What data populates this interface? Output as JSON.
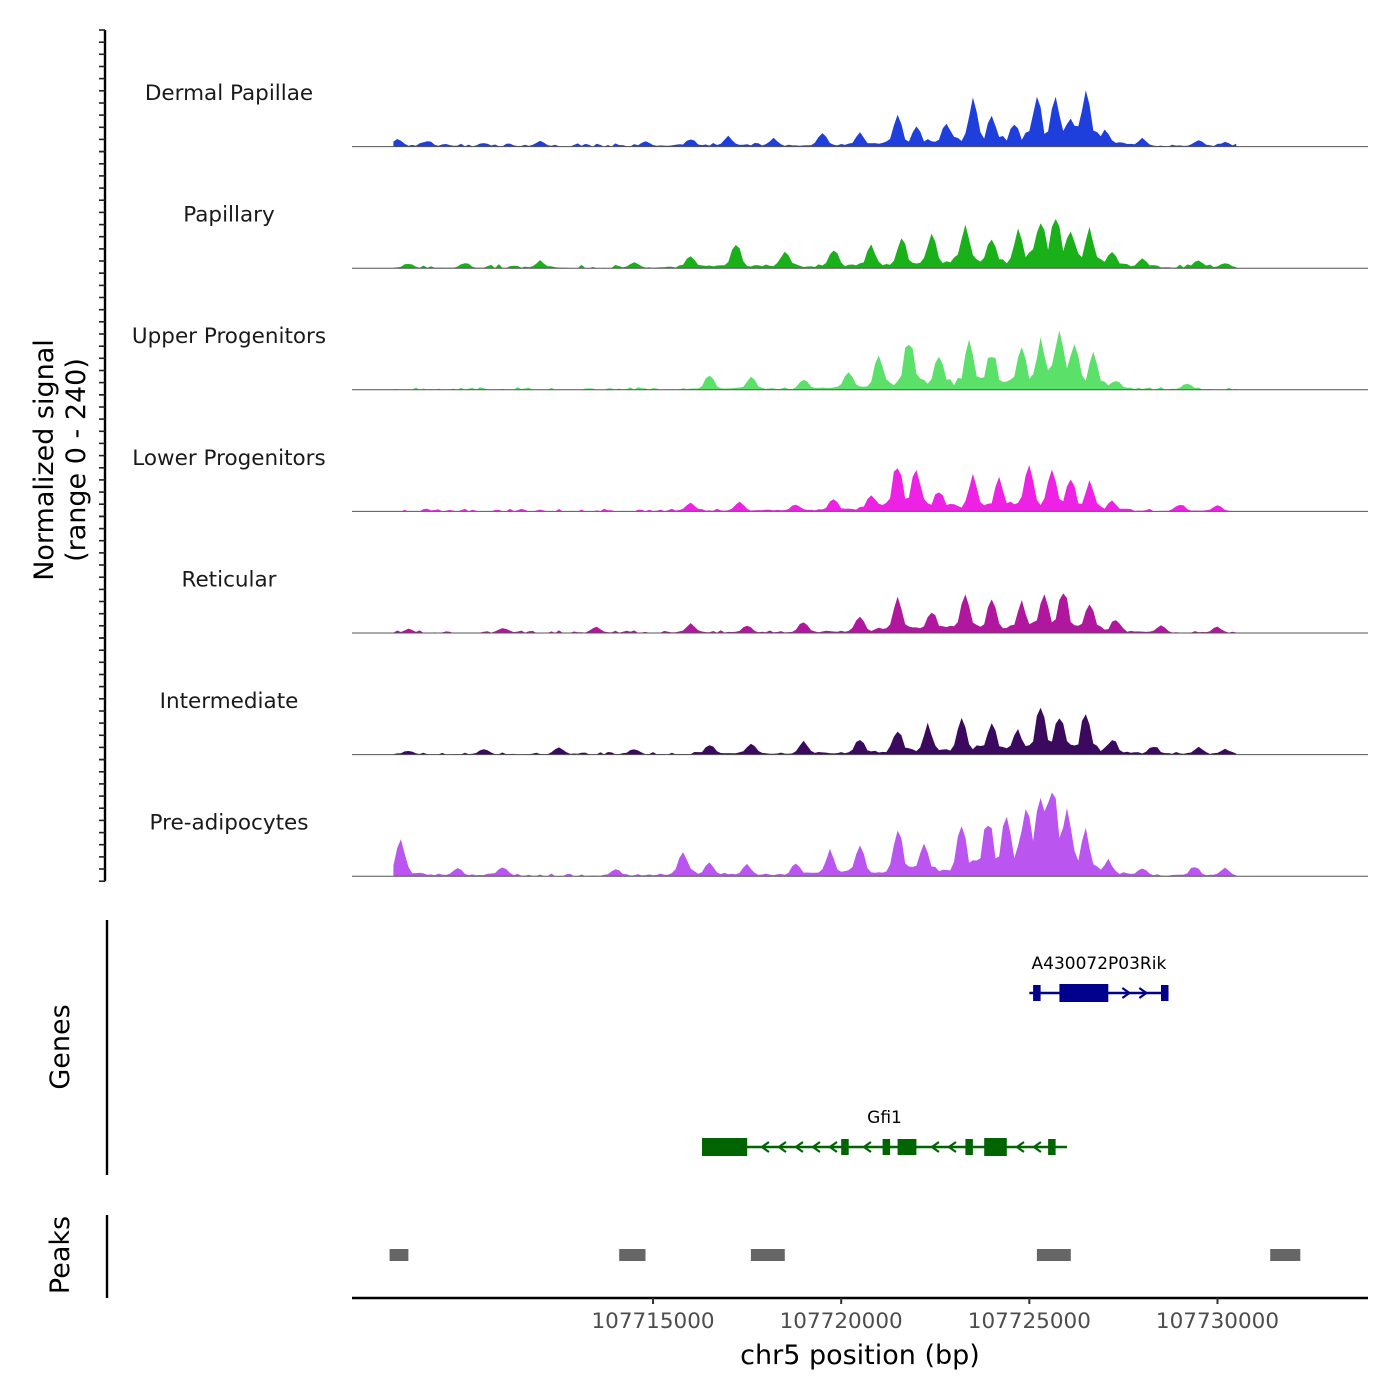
{
  "chart_data": {
    "type": "area",
    "chromosome": "chr5",
    "xlabel": "chr5 position (bp)",
    "xlim": [
      107707000,
      107734000
    ],
    "x_ticks": [
      107715000,
      107720000,
      107725000,
      107730000
    ],
    "x_tick_labels": [
      "107715000",
      "107720000",
      "107725000",
      "107730000"
    ],
    "signal_ylabel": "Normalized signal",
    "signal_range_label": "(range 0 - 240)",
    "ylim": [
      0,
      240
    ],
    "signal_x_range": [
      107708100,
      107730500
    ],
    "signal_x_step": 100,
    "series": [
      {
        "name": "Dermal Papillae",
        "color": "#1f3fdc",
        "base_level": 8,
        "peaks": [
          [
            107708200,
            18
          ],
          [
            107709000,
            15
          ],
          [
            107710500,
            10
          ],
          [
            107712000,
            14
          ],
          [
            107714800,
            12
          ],
          [
            107716000,
            20
          ],
          [
            107717000,
            25
          ],
          [
            107718200,
            20
          ],
          [
            107719500,
            30
          ],
          [
            107720500,
            32
          ],
          [
            107721500,
            70
          ],
          [
            107722000,
            50
          ],
          [
            107722800,
            60
          ],
          [
            107723500,
            110
          ],
          [
            107724000,
            75
          ],
          [
            107724600,
            55
          ],
          [
            107725200,
            120
          ],
          [
            107725700,
            115
          ],
          [
            107726100,
            80
          ],
          [
            107726500,
            128
          ],
          [
            107727000,
            40
          ],
          [
            107728000,
            20
          ],
          [
            107729500,
            15
          ],
          [
            107730200,
            12
          ]
        ]
      },
      {
        "name": "Papillary",
        "color": "#1ab01a",
        "base_level": 9,
        "peaks": [
          [
            107708500,
            12
          ],
          [
            107710000,
            14
          ],
          [
            107712000,
            18
          ],
          [
            107714500,
            15
          ],
          [
            107716000,
            30
          ],
          [
            107717200,
            60
          ],
          [
            107718500,
            42
          ],
          [
            107719800,
            45
          ],
          [
            107720800,
            55
          ],
          [
            107721600,
            75
          ],
          [
            107722400,
            80
          ],
          [
            107723300,
            110
          ],
          [
            107724000,
            80
          ],
          [
            107724700,
            90
          ],
          [
            107725300,
            125
          ],
          [
            107725700,
            130
          ],
          [
            107726100,
            95
          ],
          [
            107726600,
            95
          ],
          [
            107727200,
            40
          ],
          [
            107728000,
            25
          ],
          [
            107729500,
            20
          ],
          [
            107730200,
            14
          ]
        ]
      },
      {
        "name": "Upper Progenitors",
        "color": "#5be06a",
        "base_level": 6,
        "peaks": [
          [
            107716500,
            35
          ],
          [
            107717600,
            30
          ],
          [
            107719000,
            25
          ],
          [
            107720200,
            45
          ],
          [
            107721000,
            80
          ],
          [
            107721800,
            130
          ],
          [
            107722600,
            85
          ],
          [
            107723400,
            110
          ],
          [
            107724000,
            95
          ],
          [
            107724800,
            100
          ],
          [
            107725300,
            120
          ],
          [
            107725800,
            140
          ],
          [
            107726200,
            105
          ],
          [
            107726700,
            85
          ],
          [
            107727300,
            25
          ],
          [
            107729200,
            15
          ]
        ]
      },
      {
        "name": "Lower Progenitors",
        "color": "#ee22e4",
        "base_level": 6,
        "peaks": [
          [
            107716000,
            20
          ],
          [
            107717300,
            24
          ],
          [
            107718800,
            18
          ],
          [
            107719800,
            30
          ],
          [
            107720800,
            40
          ],
          [
            107721500,
            125
          ],
          [
            107722000,
            105
          ],
          [
            107722600,
            55
          ],
          [
            107723500,
            85
          ],
          [
            107724200,
            80
          ],
          [
            107725000,
            115
          ],
          [
            107725600,
            100
          ],
          [
            107726100,
            80
          ],
          [
            107726600,
            70
          ],
          [
            107727200,
            25
          ],
          [
            107729000,
            18
          ],
          [
            107730000,
            14
          ]
        ]
      },
      {
        "name": "Reticular",
        "color": "#b0179e",
        "base_level": 6,
        "peaks": [
          [
            107708500,
            10
          ],
          [
            107711000,
            12
          ],
          [
            107713500,
            14
          ],
          [
            107716000,
            24
          ],
          [
            107717500,
            20
          ],
          [
            107719000,
            28
          ],
          [
            107720500,
            40
          ],
          [
            107721500,
            80
          ],
          [
            107722400,
            55
          ],
          [
            107723300,
            90
          ],
          [
            107724000,
            85
          ],
          [
            107724800,
            75
          ],
          [
            107725400,
            95
          ],
          [
            107725900,
            105
          ],
          [
            107726600,
            70
          ],
          [
            107727300,
            35
          ],
          [
            107728500,
            18
          ],
          [
            107730000,
            15
          ]
        ]
      },
      {
        "name": "Intermediate",
        "color": "#3b0a5e",
        "base_level": 6,
        "peaks": [
          [
            107708500,
            10
          ],
          [
            107710500,
            14
          ],
          [
            107712500,
            18
          ],
          [
            107714500,
            14
          ],
          [
            107716500,
            25
          ],
          [
            107717600,
            28
          ],
          [
            107719000,
            32
          ],
          [
            107720500,
            40
          ],
          [
            107721500,
            65
          ],
          [
            107722300,
            70
          ],
          [
            107723200,
            90
          ],
          [
            107724000,
            75
          ],
          [
            107724700,
            60
          ],
          [
            107725300,
            120
          ],
          [
            107725800,
            105
          ],
          [
            107726500,
            100
          ],
          [
            107727200,
            40
          ],
          [
            107728300,
            22
          ],
          [
            107729500,
            18
          ],
          [
            107730200,
            14
          ]
        ]
      },
      {
        "name": "Pre-adipocytes",
        "color": "#bb55f0",
        "base_level": 6,
        "peaks": [
          [
            107708300,
            85
          ],
          [
            107709800,
            22
          ],
          [
            107711000,
            25
          ],
          [
            107714000,
            18
          ],
          [
            107715800,
            60
          ],
          [
            107716500,
            35
          ],
          [
            107717500,
            28
          ],
          [
            107718800,
            30
          ],
          [
            107719700,
            60
          ],
          [
            107720500,
            70
          ],
          [
            107721500,
            115
          ],
          [
            107722200,
            80
          ],
          [
            107723200,
            120
          ],
          [
            107723900,
            145
          ],
          [
            107724400,
            160
          ],
          [
            107724900,
            180
          ],
          [
            107725300,
            200
          ],
          [
            107725600,
            240
          ],
          [
            107726000,
            150
          ],
          [
            107726500,
            110
          ],
          [
            107727100,
            40
          ],
          [
            107728000,
            22
          ],
          [
            107729400,
            25
          ],
          [
            107730200,
            20
          ]
        ]
      }
    ],
    "genes_ylabel": "Genes",
    "genes": [
      {
        "name": "A430072P03Rik",
        "color": "#00008b",
        "strand": "+",
        "start": 107725000,
        "end": 107728700,
        "exons": [
          [
            107725100,
            107725300
          ],
          [
            107725800,
            107727100
          ],
          [
            107728500,
            107728700
          ]
        ]
      },
      {
        "name": "Gfi1",
        "color": "#006400",
        "strand": "-",
        "start": 107716300,
        "end": 107726000,
        "exons": [
          [
            107716300,
            107717500
          ],
          [
            107720000,
            107720200
          ],
          [
            107721100,
            107721300
          ],
          [
            107721500,
            107722000
          ],
          [
            107723300,
            107723500
          ],
          [
            107723800,
            107724400
          ],
          [
            107725500,
            107725700
          ]
        ]
      }
    ],
    "peaks_ylabel": "Peaks",
    "peak_color": "#666666",
    "peak_regions": [
      [
        107708000,
        107708500
      ],
      [
        107714100,
        107714800
      ],
      [
        107717600,
        107718500
      ],
      [
        107725200,
        107726100
      ],
      [
        107731400,
        107732200
      ]
    ]
  }
}
